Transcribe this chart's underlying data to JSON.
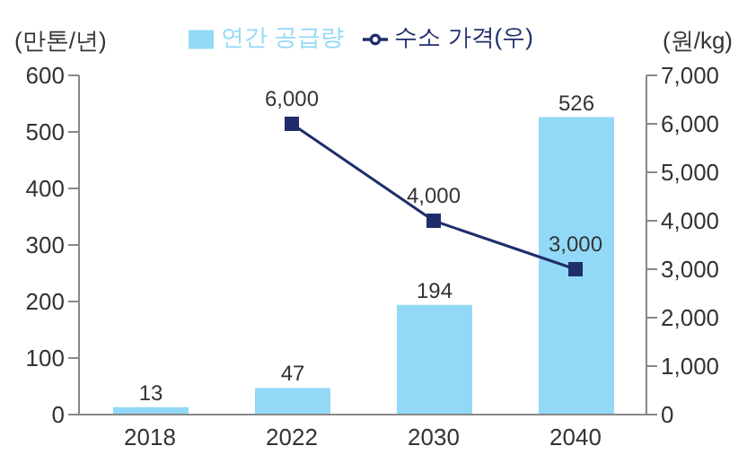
{
  "chart_data": {
    "type": "bar",
    "categories": [
      "2018",
      "2022",
      "2030",
      "2040"
    ],
    "ylabel": "(만톤/년)",
    "y2label": "(원/kg)",
    "series": [
      {
        "name": "연간 공급량",
        "color": "#92d9f7",
        "values": [
          13,
          47,
          194,
          526
        ],
        "value_labels": [
          "13",
          "47",
          "194",
          "526"
        ]
      },
      {
        "name": "수소 가격(우)",
        "type": "line",
        "axis": "y2",
        "color": "#1f2d6b",
        "marker": "square",
        "values": [
          null,
          6000,
          4000,
          3000
        ],
        "value_labels": [
          null,
          "6,000",
          "4,000",
          "3,000"
        ]
      }
    ],
    "ylim": [
      0,
      600
    ],
    "yticks": [
      0,
      100,
      200,
      300,
      400,
      500,
      600
    ],
    "y2lim": [
      0,
      7000
    ],
    "y2ticks": [
      0,
      {
        "value": 1000,
        "label": "1,000"
      },
      {
        "value": 2000,
        "label": "2,000"
      },
      {
        "value": 3000,
        "label": "3,000"
      },
      {
        "value": 4000,
        "label": "4,000"
      },
      {
        "value": 5000,
        "label": "5,000"
      },
      {
        "value": 6000,
        "label": "6,000"
      },
      {
        "value": 7000,
        "label": "7,000"
      }
    ],
    "legend": "top"
  }
}
